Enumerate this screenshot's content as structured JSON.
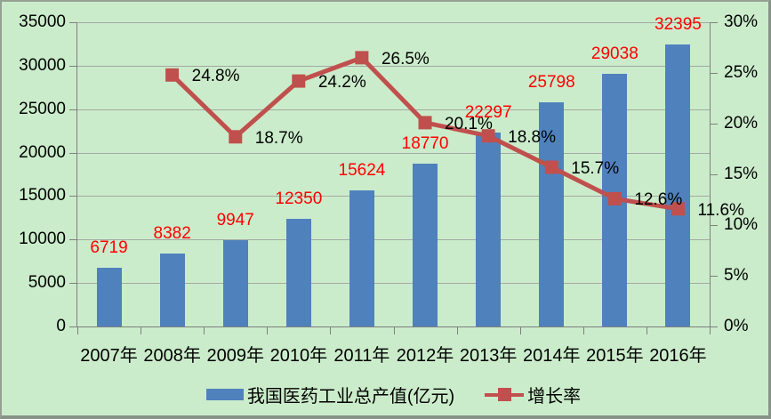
{
  "chart_data": {
    "type": "bar",
    "combo": "bar+line",
    "title": "",
    "categories": [
      "2007年",
      "2008年",
      "2009年",
      "2010年",
      "2011年",
      "2012年",
      "2013年",
      "2014年",
      "2015年",
      "2016年"
    ],
    "series": [
      {
        "name": "我国医药工业总产值(亿元)",
        "type": "bar",
        "axis": "left",
        "color": "#4f81bd",
        "values": [
          6719,
          8382,
          9947,
          12350,
          15624,
          18770,
          22297,
          25798,
          29038,
          32395
        ],
        "labels": [
          "6719",
          "8382",
          "9947",
          "12350",
          "15624",
          "18770",
          "22297",
          "25798",
          "29038",
          "32395"
        ],
        "label_color": "#ff0000"
      },
      {
        "name": "增长率",
        "type": "line",
        "axis": "right",
        "color": "#c0504d",
        "values": [
          null,
          24.8,
          18.7,
          24.2,
          26.5,
          20.1,
          18.8,
          15.7,
          12.6,
          11.6
        ],
        "labels": [
          null,
          "24.8%",
          "18.7%",
          "24.2%",
          "26.5%",
          "20.1%",
          "18.8%",
          "15.7%",
          "12.6%",
          "11.6%"
        ],
        "label_color": "#000000"
      }
    ],
    "left_axis": {
      "min": 0,
      "max": 35000,
      "step": 5000,
      "tick_labels": [
        "0",
        "5000",
        "10000",
        "15000",
        "20000",
        "25000",
        "30000",
        "35000"
      ]
    },
    "right_axis": {
      "min": 0,
      "max": 30,
      "step": 5,
      "tick_labels": [
        "0%",
        "5%",
        "10%",
        "15%",
        "20%",
        "25%",
        "30%"
      ]
    },
    "legend": {
      "position": "bottom",
      "entries": [
        "我国医药工业总产值(亿元)",
        "增长率"
      ]
    },
    "grid": true,
    "background_color": "#cbeccb",
    "grid_color": "#a3a8a3",
    "axis_color": "#7f7f7f"
  }
}
